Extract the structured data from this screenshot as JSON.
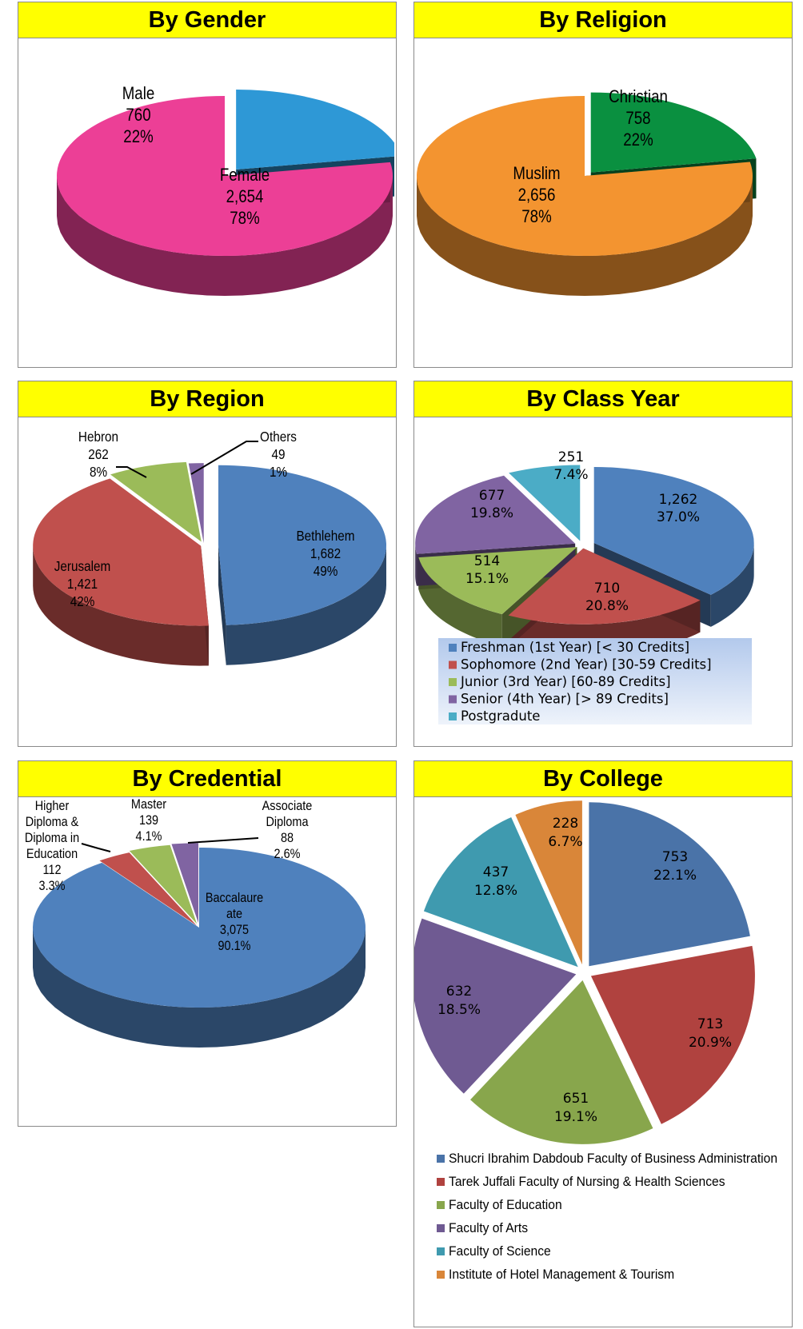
{
  "chart_data": [
    {
      "id": "gender",
      "type": "pie",
      "title": "By Gender",
      "slices": [
        {
          "label": "Male",
          "value": 760,
          "value_text": "760",
          "pct": "22%",
          "color": "#2e98d6"
        },
        {
          "label": "Female",
          "value": 2654,
          "value_text": "2,654",
          "pct": "78%",
          "color": "#ec3f96"
        }
      ]
    },
    {
      "id": "religion",
      "type": "pie",
      "title": "By Religion",
      "slices": [
        {
          "label": "Christian",
          "value": 758,
          "value_text": "758",
          "pct": "22%",
          "color": "#0a9040"
        },
        {
          "label": "Muslim",
          "value": 2656,
          "value_text": "2,656",
          "pct": "78%",
          "color": "#f39430"
        }
      ]
    },
    {
      "id": "region",
      "type": "pie",
      "title": "By Region",
      "slices": [
        {
          "label": "Bethlehem",
          "value": 1682,
          "value_text": "1,682",
          "pct": "49%",
          "color": "#4f81bd"
        },
        {
          "label": "Jerusalem",
          "value": 1421,
          "value_text": "1,421",
          "pct": "42%",
          "color": "#c0504d"
        },
        {
          "label": "Hebron",
          "value": 262,
          "value_text": "262",
          "pct": "8%",
          "color": "#9bbb59"
        },
        {
          "label": "Others",
          "value": 49,
          "value_text": "49",
          "pct": "1%",
          "color": "#8064a2"
        }
      ]
    },
    {
      "id": "class",
      "type": "pie",
      "title": "By Class Year",
      "slices": [
        {
          "label": "Freshman (1st Year) [< 30 Credits]",
          "value": 1262,
          "value_text": "1,262",
          "pct": "37.0%",
          "color": "#4f81bd"
        },
        {
          "label": "Sophomore (2nd Year)  [30-59 Credits]",
          "value": 710,
          "value_text": "710",
          "pct": "20.8%",
          "color": "#c0504d"
        },
        {
          "label": "Junior (3rd Year)  [60-89 Credits]",
          "value": 514,
          "value_text": "514",
          "pct": "15.1%",
          "color": "#9bbb59"
        },
        {
          "label": "Senior (4th Year)  [> 89 Credits]",
          "value": 677,
          "value_text": "677",
          "pct": "19.8%",
          "color": "#8064a2"
        },
        {
          "label": "Postgradute",
          "value": 251,
          "value_text": "251",
          "pct": "7.4%",
          "color": "#4bacc6"
        }
      ],
      "legend": "bottom"
    },
    {
      "id": "credential",
      "type": "pie",
      "title": "By Credential",
      "slices": [
        {
          "label": "Baccalaure ate",
          "label_lines": [
            "Baccalaure",
            "ate"
          ],
          "value": 3075,
          "value_text": "3,075",
          "pct": "90.1%",
          "color": "#4f81bd"
        },
        {
          "label": "Higher Diploma & Diploma in Education",
          "label_lines": [
            "Higher",
            "Diploma &",
            "Diploma in",
            "Education"
          ],
          "value": 112,
          "value_text": "112",
          "pct": "3.3%",
          "color": "#c0504d"
        },
        {
          "label": "Master",
          "label_lines": [
            "Master"
          ],
          "value": 139,
          "value_text": "139",
          "pct": "4.1%",
          "color": "#9bbb59"
        },
        {
          "label": "Associate Diploma",
          "label_lines": [
            "Associate",
            "Diploma"
          ],
          "value": 88,
          "value_text": "88",
          "pct": "2.6%",
          "color": "#8064a2"
        }
      ]
    },
    {
      "id": "college",
      "type": "pie",
      "title": "By College",
      "slices": [
        {
          "label": "Shucri Ibrahim Dabdoub Faculty of Business Administration",
          "value": 753,
          "value_text": "753",
          "pct": "22.1%",
          "color": "#4a73a8"
        },
        {
          "label": "Tarek Juffali Faculty of Nursing & Health Sciences",
          "value": 713,
          "value_text": "713",
          "pct": "20.9%",
          "color": "#b0423f"
        },
        {
          "label": "Faculty of Education",
          "value": 651,
          "value_text": "651",
          "pct": "19.1%",
          "color": "#88a64c"
        },
        {
          "label": "Faculty of Arts",
          "value": 632,
          "value_text": "632",
          "pct": "18.5%",
          "color": "#6f5a92"
        },
        {
          "label": "Faculty of Science",
          "value": 437,
          "value_text": "437",
          "pct": "12.8%",
          "color": "#3f9aaf"
        },
        {
          "label": "Institute of Hotel Management & Tourism",
          "value": 228,
          "value_text": "228",
          "pct": "6.7%",
          "color": "#d98639"
        }
      ],
      "legend": "bottom"
    }
  ]
}
